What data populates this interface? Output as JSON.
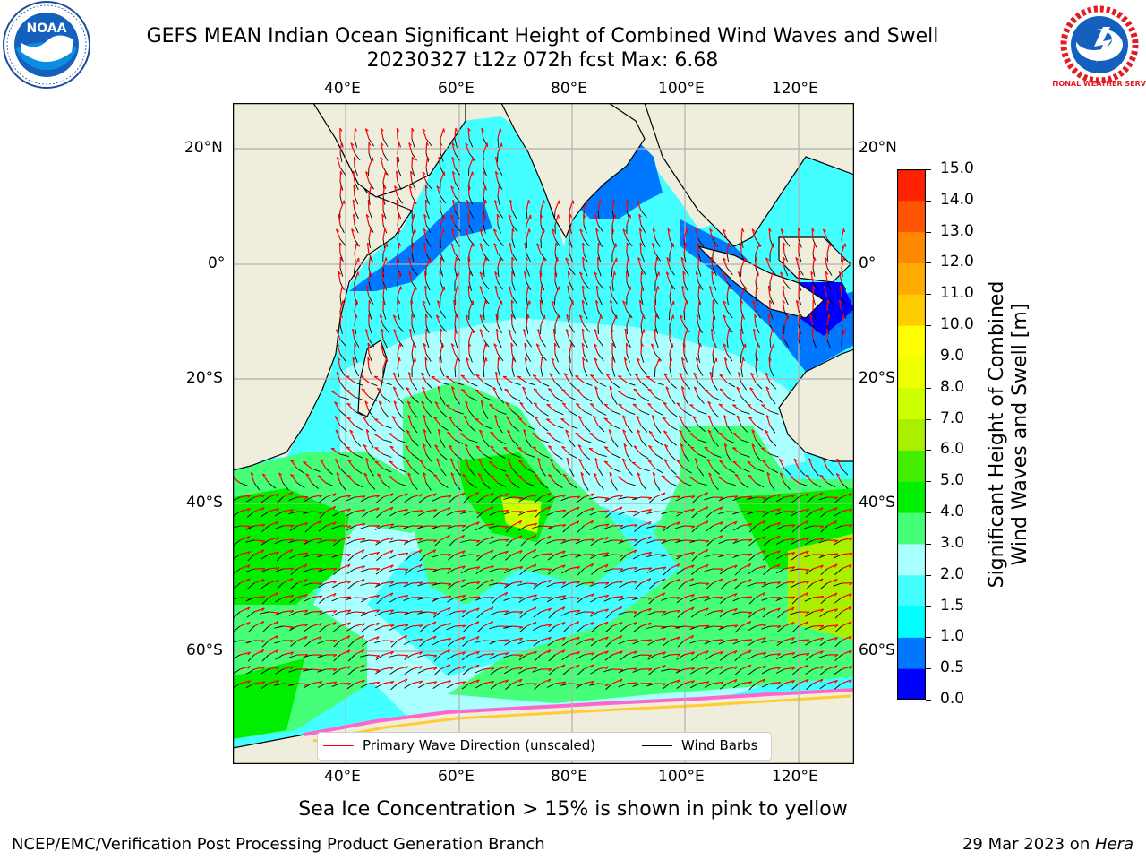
{
  "header": {
    "title_line1": "GEFS MEAN Indian Ocean Significant Height of Combined Wind Waves and Swell",
    "title_line2": "20230327 t12z 072h fcst   Max: 6.68"
  },
  "logos": {
    "noaa": {
      "text": "NOAA"
    },
    "nws": {
      "text": "NATIONAL WEATHER SERVICE"
    }
  },
  "map": {
    "lon_ticks": [
      "40°E",
      "60°E",
      "80°E",
      "100°E",
      "120°E"
    ],
    "lat_ticks_left": [
      "20°N",
      "0°",
      "20°S",
      "40°S",
      "60°S"
    ],
    "lat_ticks_right": [
      "20°N",
      "0°",
      "20°S",
      "40°S",
      "60°S"
    ],
    "land_color": "#efeddc",
    "grid": true
  },
  "legend": {
    "wave_label": "Primary Wave Direction (unscaled)",
    "wave_color": "#ff0000",
    "barb_label": "Wind Barbs",
    "barb_color": "#000000"
  },
  "colorbar": {
    "label_line1": "Significant Height of Combined",
    "label_line2": "Wind Waves and Swell [m]",
    "ticks": [
      "0.0",
      "0.5",
      "1.0",
      "1.5",
      "2.0",
      "3.0",
      "4.0",
      "5.0",
      "6.0",
      "7.0",
      "8.0",
      "9.0",
      "10.0",
      "11.0",
      "12.0",
      "13.0",
      "14.0",
      "15.0"
    ],
    "colors": [
      "#0000ff",
      "#0077ff",
      "#00ffff",
      "#44ffff",
      "#aaffff",
      "#44ff77",
      "#00ee00",
      "#44ee00",
      "#aaee00",
      "#ccff00",
      "#eeff00",
      "#ffff00",
      "#ffcc00",
      "#ffaa00",
      "#ff8800",
      "#ff5500",
      "#ff2200"
    ]
  },
  "notes": {
    "sea_ice": "Sea Ice Concentration > 15% is shown in pink to yellow"
  },
  "footer": {
    "left": "NCEP/EMC/Verification Post Processing Product Generation Branch",
    "right_prefix": "29 Mar 2023 on ",
    "right_host": "Hera"
  }
}
